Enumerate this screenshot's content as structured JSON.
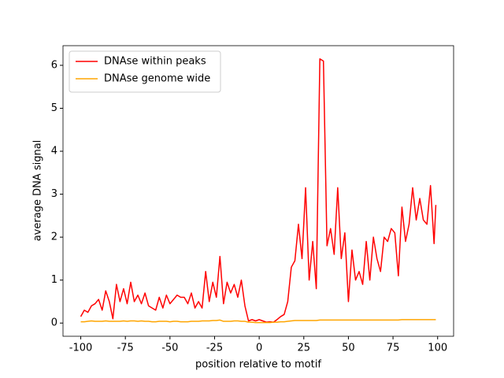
{
  "chart_data": {
    "type": "line",
    "xlabel": "position relative to motif",
    "ylabel": "average DNA signal",
    "x": [
      -100,
      -98,
      -96,
      -94,
      -92,
      -90,
      -88,
      -86,
      -84,
      -82,
      -80,
      -78,
      -76,
      -74,
      -72,
      -70,
      -68,
      -66,
      -64,
      -62,
      -60,
      -58,
      -56,
      -54,
      -52,
      -50,
      -48,
      -46,
      -44,
      -42,
      -40,
      -38,
      -36,
      -34,
      -32,
      -30,
      -28,
      -26,
      -24,
      -22,
      -20,
      -18,
      -16,
      -14,
      -12,
      -10,
      -8,
      -6,
      -4,
      -2,
      0,
      2,
      4,
      6,
      8,
      10,
      12,
      14,
      16,
      18,
      20,
      22,
      24,
      26,
      28,
      30,
      32,
      34,
      36,
      38,
      40,
      42,
      44,
      46,
      48,
      50,
      52,
      54,
      56,
      58,
      60,
      62,
      64,
      66,
      68,
      70,
      72,
      74,
      76,
      78,
      80,
      82,
      84,
      86,
      88,
      90,
      92,
      94,
      96,
      98,
      99
    ],
    "series": [
      {
        "name": "DNAse within peaks",
        "color": "#ff0000",
        "values": [
          0.15,
          0.3,
          0.25,
          0.4,
          0.45,
          0.55,
          0.3,
          0.75,
          0.5,
          0.1,
          0.9,
          0.5,
          0.8,
          0.45,
          0.95,
          0.5,
          0.65,
          0.45,
          0.7,
          0.4,
          0.35,
          0.3,
          0.6,
          0.35,
          0.65,
          0.45,
          0.55,
          0.65,
          0.6,
          0.6,
          0.45,
          0.7,
          0.35,
          0.5,
          0.35,
          1.2,
          0.5,
          0.95,
          0.6,
          1.55,
          0.45,
          0.95,
          0.7,
          0.9,
          0.6,
          1.0,
          0.4,
          0.05,
          0.08,
          0.05,
          0.08,
          0.05,
          0.02,
          0.03,
          0.02,
          0.08,
          0.15,
          0.2,
          0.5,
          1.3,
          1.45,
          2.3,
          1.5,
          3.15,
          1.0,
          1.9,
          0.8,
          6.15,
          6.1,
          1.8,
          2.2,
          1.6,
          3.15,
          1.5,
          2.1,
          0.5,
          1.7,
          1.0,
          1.2,
          0.9,
          1.9,
          1.0,
          2.0,
          1.5,
          1.2,
          2.0,
          1.9,
          2.2,
          2.1,
          1.1,
          2.7,
          1.9,
          2.3,
          3.15,
          2.4,
          2.9,
          2.4,
          2.3,
          3.2,
          1.85,
          2.75
        ]
      },
      {
        "name": "DNAse genome wide",
        "color": "#ffa500",
        "values": [
          0.03,
          0.03,
          0.04,
          0.05,
          0.04,
          0.04,
          0.04,
          0.05,
          0.04,
          0.04,
          0.04,
          0.04,
          0.05,
          0.04,
          0.05,
          0.05,
          0.04,
          0.05,
          0.04,
          0.04,
          0.03,
          0.03,
          0.04,
          0.04,
          0.04,
          0.03,
          0.04,
          0.04,
          0.03,
          0.03,
          0.03,
          0.04,
          0.04,
          0.04,
          0.05,
          0.05,
          0.05,
          0.06,
          0.06,
          0.07,
          0.04,
          0.04,
          0.04,
          0.05,
          0.05,
          0.04,
          0.04,
          0.02,
          0.02,
          0.01,
          0.01,
          0.01,
          0.01,
          0.01,
          0.02,
          0.02,
          0.03,
          0.03,
          0.04,
          0.05,
          0.06,
          0.06,
          0.06,
          0.06,
          0.06,
          0.06,
          0.06,
          0.07,
          0.07,
          0.07,
          0.07,
          0.07,
          0.07,
          0.07,
          0.07,
          0.07,
          0.07,
          0.07,
          0.07,
          0.07,
          0.07,
          0.07,
          0.07,
          0.07,
          0.07,
          0.07,
          0.07,
          0.07,
          0.07,
          0.07,
          0.08,
          0.08,
          0.08,
          0.08,
          0.08,
          0.08,
          0.08,
          0.08,
          0.08,
          0.08,
          0.08
        ]
      }
    ],
    "xlim": [
      -109.95,
      108.95
    ],
    "xticks": [
      -100,
      -75,
      -50,
      -25,
      0,
      25,
      50,
      75,
      100
    ],
    "ylim": [
      -0.3075,
      6.4575
    ],
    "yticks": [
      0,
      1,
      2,
      3,
      4,
      5,
      6
    ],
    "legend": "upper left",
    "grid": false
  }
}
